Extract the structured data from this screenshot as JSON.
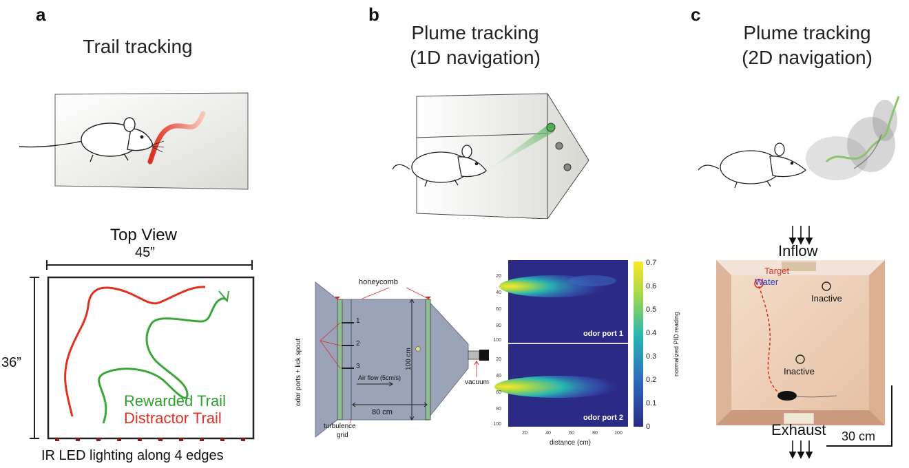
{
  "panels": {
    "a": {
      "letter": "a",
      "title": "Trail tracking",
      "top_view_label": "Top View",
      "width_label": "45”",
      "height_label": "36”",
      "legend": {
        "rewarded": "Rewarded Trail",
        "distractor": "Distractor Trail"
      },
      "lighting_caption": "IR LED lighting along 4 edges",
      "colors": {
        "rewarded": "#2e9e2e",
        "distractor": "#e03020"
      }
    },
    "b": {
      "letter": "b",
      "title_line1": "Plume tracking",
      "title_line2": "(1D navigation)",
      "schematic": {
        "honeycomb": "honeycomb",
        "odor_ports": "odor ports + lick spout",
        "port_numbers": [
          "1",
          "2",
          "3"
        ],
        "airflow": "Air flow (5cm/s)",
        "turbulence_line1": "turbulence",
        "turbulence_line2": "grid",
        "length": "80 cm",
        "width": "100 cm",
        "vacuum": "vacuum"
      },
      "heatmap": {
        "top_label": "odor port 1",
        "bottom_label": "odor port 2",
        "y_ticks": [
          "20",
          "40",
          "60",
          "80",
          "100"
        ],
        "x_ticks": [
          "20",
          "40",
          "60",
          "80",
          "100"
        ],
        "xlabel": "distance (cm)",
        "colorbar_label": "normalized PID reading",
        "colorbar_ticks": [
          "0.7",
          "0.6",
          "0.5",
          "0.4",
          "0.3",
          "0.2",
          "0.1",
          "0"
        ]
      }
    },
    "c": {
      "letter": "c",
      "title_line1": "Plume tracking",
      "title_line2": "(2D navigation)",
      "inflow": "Inflow",
      "exhaust": "Exhaust",
      "target": "Target",
      "water": "Water",
      "inactive": "Inactive",
      "scale": "30 cm",
      "colors": {
        "target": "#e03020",
        "water": "#2a3fd0"
      }
    }
  }
}
